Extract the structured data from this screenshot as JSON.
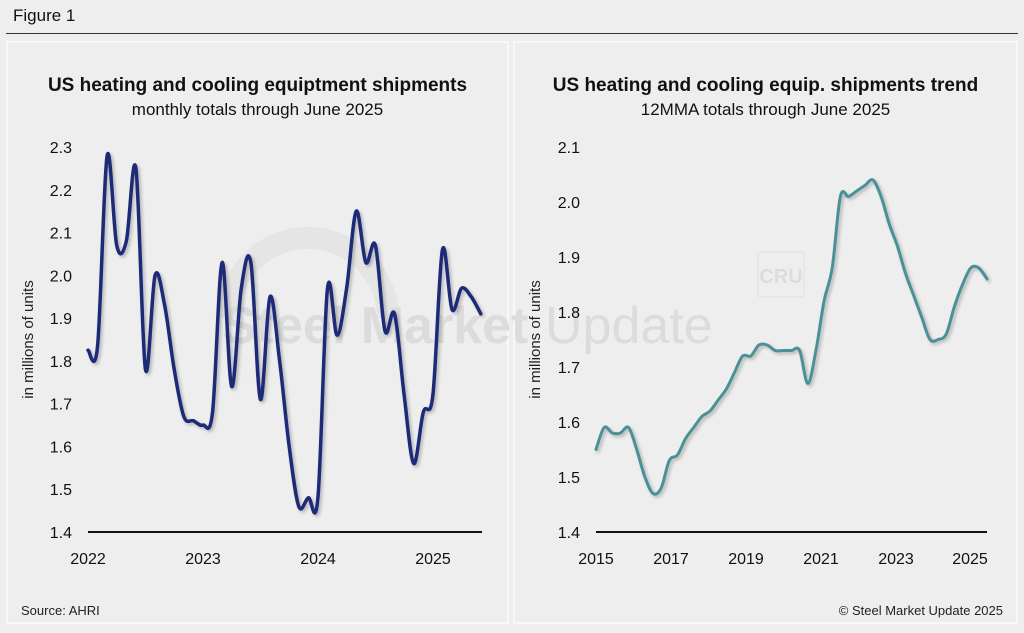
{
  "figure_title": "Figure 1",
  "source": "Source: AHRI",
  "copyright": "© Steel Market Update 2025",
  "watermark": {
    "text_bold": "Steel Market",
    "text_light": " Update",
    "logo": "CRU"
  },
  "colors": {
    "left_line": "#1f2a78",
    "right_line": "#4a9097"
  },
  "chart_data": [
    {
      "type": "line",
      "title": "US heating and cooling equiptment shipments",
      "subtitle": "monthly totals through June 2025",
      "xlabel": "",
      "ylabel": "in millions of units",
      "ylim": [
        1.4,
        2.3
      ],
      "yticks": [
        "1.4",
        "1.5",
        "1.6",
        "1.7",
        "1.8",
        "1.9",
        "2.0",
        "2.1",
        "2.2",
        "2.3"
      ],
      "xticks": [
        "2022",
        "2023",
        "2024",
        "2025"
      ],
      "grid": false,
      "x_start": "2022-01",
      "frequency": "monthly",
      "series": [
        {
          "name": "monthly shipments",
          "values": [
            1.825,
            1.835,
            2.28,
            2.07,
            2.08,
            2.25,
            1.78,
            2.0,
            1.93,
            1.78,
            1.67,
            1.66,
            1.65,
            1.68,
            2.03,
            1.74,
            1.97,
            2.03,
            1.71,
            1.95,
            1.8,
            1.6,
            1.46,
            1.48,
            1.48,
            1.97,
            1.86,
            1.97,
            2.15,
            2.03,
            2.07,
            1.87,
            1.91,
            1.72,
            1.56,
            1.68,
            1.72,
            2.06,
            1.92,
            1.97,
            1.95,
            1.91
          ]
        }
      ]
    },
    {
      "type": "line",
      "title": "US heating and cooling equip. shipments trend",
      "subtitle": "12MMA totals through June 2025",
      "xlabel": "",
      "ylabel": "in millions of units",
      "ylim": [
        1.4,
        2.1
      ],
      "yticks": [
        "1.4",
        "1.5",
        "1.6",
        "1.7",
        "1.8",
        "1.9",
        "2.0",
        "2.1"
      ],
      "xticks": [
        "2015",
        "2017",
        "2019",
        "2021",
        "2023",
        "2025"
      ],
      "grid": false,
      "x_start": "2015-01",
      "frequency": "quarterly-sampled 12MMA",
      "series": [
        {
          "name": "12-month moving average",
          "values": [
            1.55,
            1.59,
            1.58,
            1.58,
            1.59,
            1.55,
            1.5,
            1.47,
            1.48,
            1.53,
            1.54,
            1.57,
            1.59,
            1.61,
            1.62,
            1.64,
            1.66,
            1.69,
            1.72,
            1.72,
            1.74,
            1.74,
            1.73,
            1.73,
            1.73,
            1.73,
            1.67,
            1.73,
            1.82,
            1.88,
            2.01,
            2.01,
            2.02,
            2.03,
            2.04,
            2.01,
            1.96,
            1.92,
            1.87,
            1.83,
            1.79,
            1.75,
            1.75,
            1.76,
            1.81,
            1.85,
            1.88,
            1.88,
            1.86
          ]
        }
      ]
    }
  ]
}
